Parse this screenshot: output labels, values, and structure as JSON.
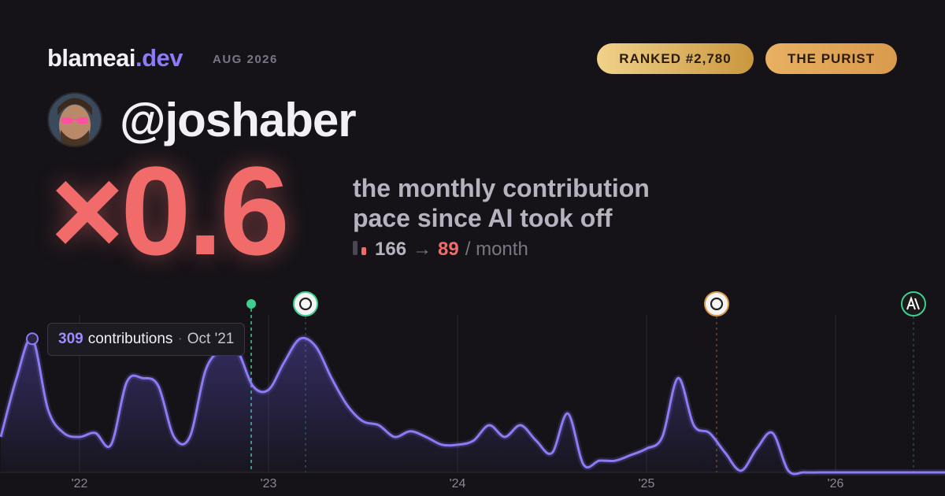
{
  "header": {
    "brand": "blameai",
    "brand_tld": ".dev",
    "period": "AUG 2026",
    "badges": [
      "RANKED #2,780",
      "THE PURIST"
    ]
  },
  "profile": {
    "handle": "@joshaber"
  },
  "hero": {
    "multiplier": "×0.6",
    "description": [
      "the monthly contribution",
      "pace since AI took off"
    ],
    "before": 166,
    "arrow": "→",
    "after": 89,
    "unit": "/ month"
  },
  "tooltip": {
    "label": "contributions",
    "separator": "·",
    "date": "Oct '21"
  },
  "chart_data": {
    "type": "area",
    "color": "#8b7cf6",
    "categories": [
      null,
      null,
      null,
      null,
      null,
      "'22",
      null,
      null,
      null,
      null,
      null,
      null,
      null,
      null,
      null,
      null,
      null,
      "'23",
      null,
      null,
      null,
      null,
      null,
      null,
      null,
      null,
      null,
      null,
      null,
      "'24",
      null,
      null,
      null,
      null,
      null,
      null,
      null,
      null,
      null,
      null,
      null,
      "'25",
      null,
      null,
      null,
      null,
      null,
      null,
      null,
      null,
      null,
      null,
      null,
      "'26",
      null,
      null,
      null,
      null,
      null,
      null,
      null
    ],
    "values": [
      82,
      218,
      309,
      145,
      91,
      82,
      91,
      64,
      209,
      218,
      200,
      82,
      82,
      236,
      282,
      282,
      200,
      191,
      255,
      309,
      291,
      218,
      155,
      118,
      109,
      82,
      95,
      82,
      64,
      64,
      73,
      109,
      82,
      109,
      73,
      45,
      136,
      18,
      27,
      27,
      40,
      55,
      82,
      218,
      109,
      91,
      45,
      4,
      55,
      91,
      4,
      0,
      0,
      0,
      0,
      0,
      0,
      0,
      0,
      0,
      0
    ],
    "ylim": [
      0,
      364
    ]
  }
}
